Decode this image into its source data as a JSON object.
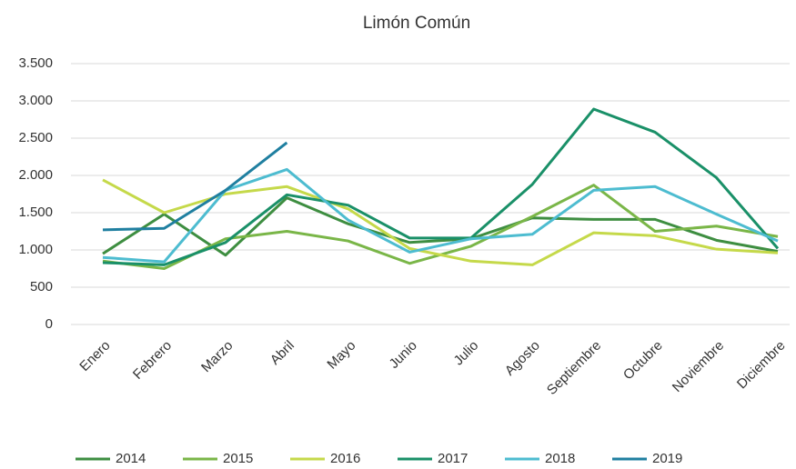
{
  "chart_data": {
    "type": "line",
    "title": "Limón Común",
    "categories": [
      "Enero",
      "Febrero",
      "Marzo",
      "Abril",
      "Mayo",
      "Junio",
      "Julio",
      "Agosto",
      "Septiembre",
      "Octubre",
      "Noviembre",
      "Diciembre"
    ],
    "series": [
      {
        "name": "2014",
        "color": "#3e8e41",
        "values": [
          950,
          1480,
          930,
          1700,
          1350,
          1100,
          1150,
          1430,
          1410,
          1410,
          1130,
          980
        ]
      },
      {
        "name": "2015",
        "color": "#7ab648",
        "values": [
          850,
          750,
          1150,
          1250,
          1120,
          820,
          1050,
          1450,
          1870,
          1250,
          1320,
          1180
        ]
      },
      {
        "name": "2016",
        "color": "#c5d94a",
        "values": [
          1940,
          1500,
          1750,
          1850,
          1550,
          1020,
          850,
          800,
          1230,
          1190,
          1010,
          960
        ]
      },
      {
        "name": "2017",
        "color": "#1a9068",
        "values": [
          830,
          800,
          1100,
          1740,
          1600,
          1160,
          1160,
          1880,
          2890,
          2580,
          1970,
          1020
        ]
      },
      {
        "name": "2018",
        "color": "#4dbcd0",
        "values": [
          900,
          840,
          1800,
          2080,
          1400,
          970,
          1150,
          1210,
          1800,
          1850,
          1480,
          1120
        ]
      },
      {
        "name": "2019",
        "color": "#1f7fa0",
        "values": [
          1270,
          1290,
          1800,
          2440,
          null,
          null,
          null,
          null,
          null,
          null,
          null,
          null
        ]
      }
    ],
    "ylim": [
      0,
      3500
    ],
    "yticks": [
      0,
      500,
      {
        "value": 1000,
        "label": "1.000"
      },
      {
        "value": 1500,
        "label": "1.500"
      },
      {
        "value": 2000,
        "label": "2.000"
      },
      {
        "value": 2500,
        "label": "2.500"
      },
      {
        "value": 3000,
        "label": "3.000"
      },
      {
        "value": 3500,
        "label": "3.500"
      }
    ],
    "grid": true,
    "legend": "bottom"
  }
}
